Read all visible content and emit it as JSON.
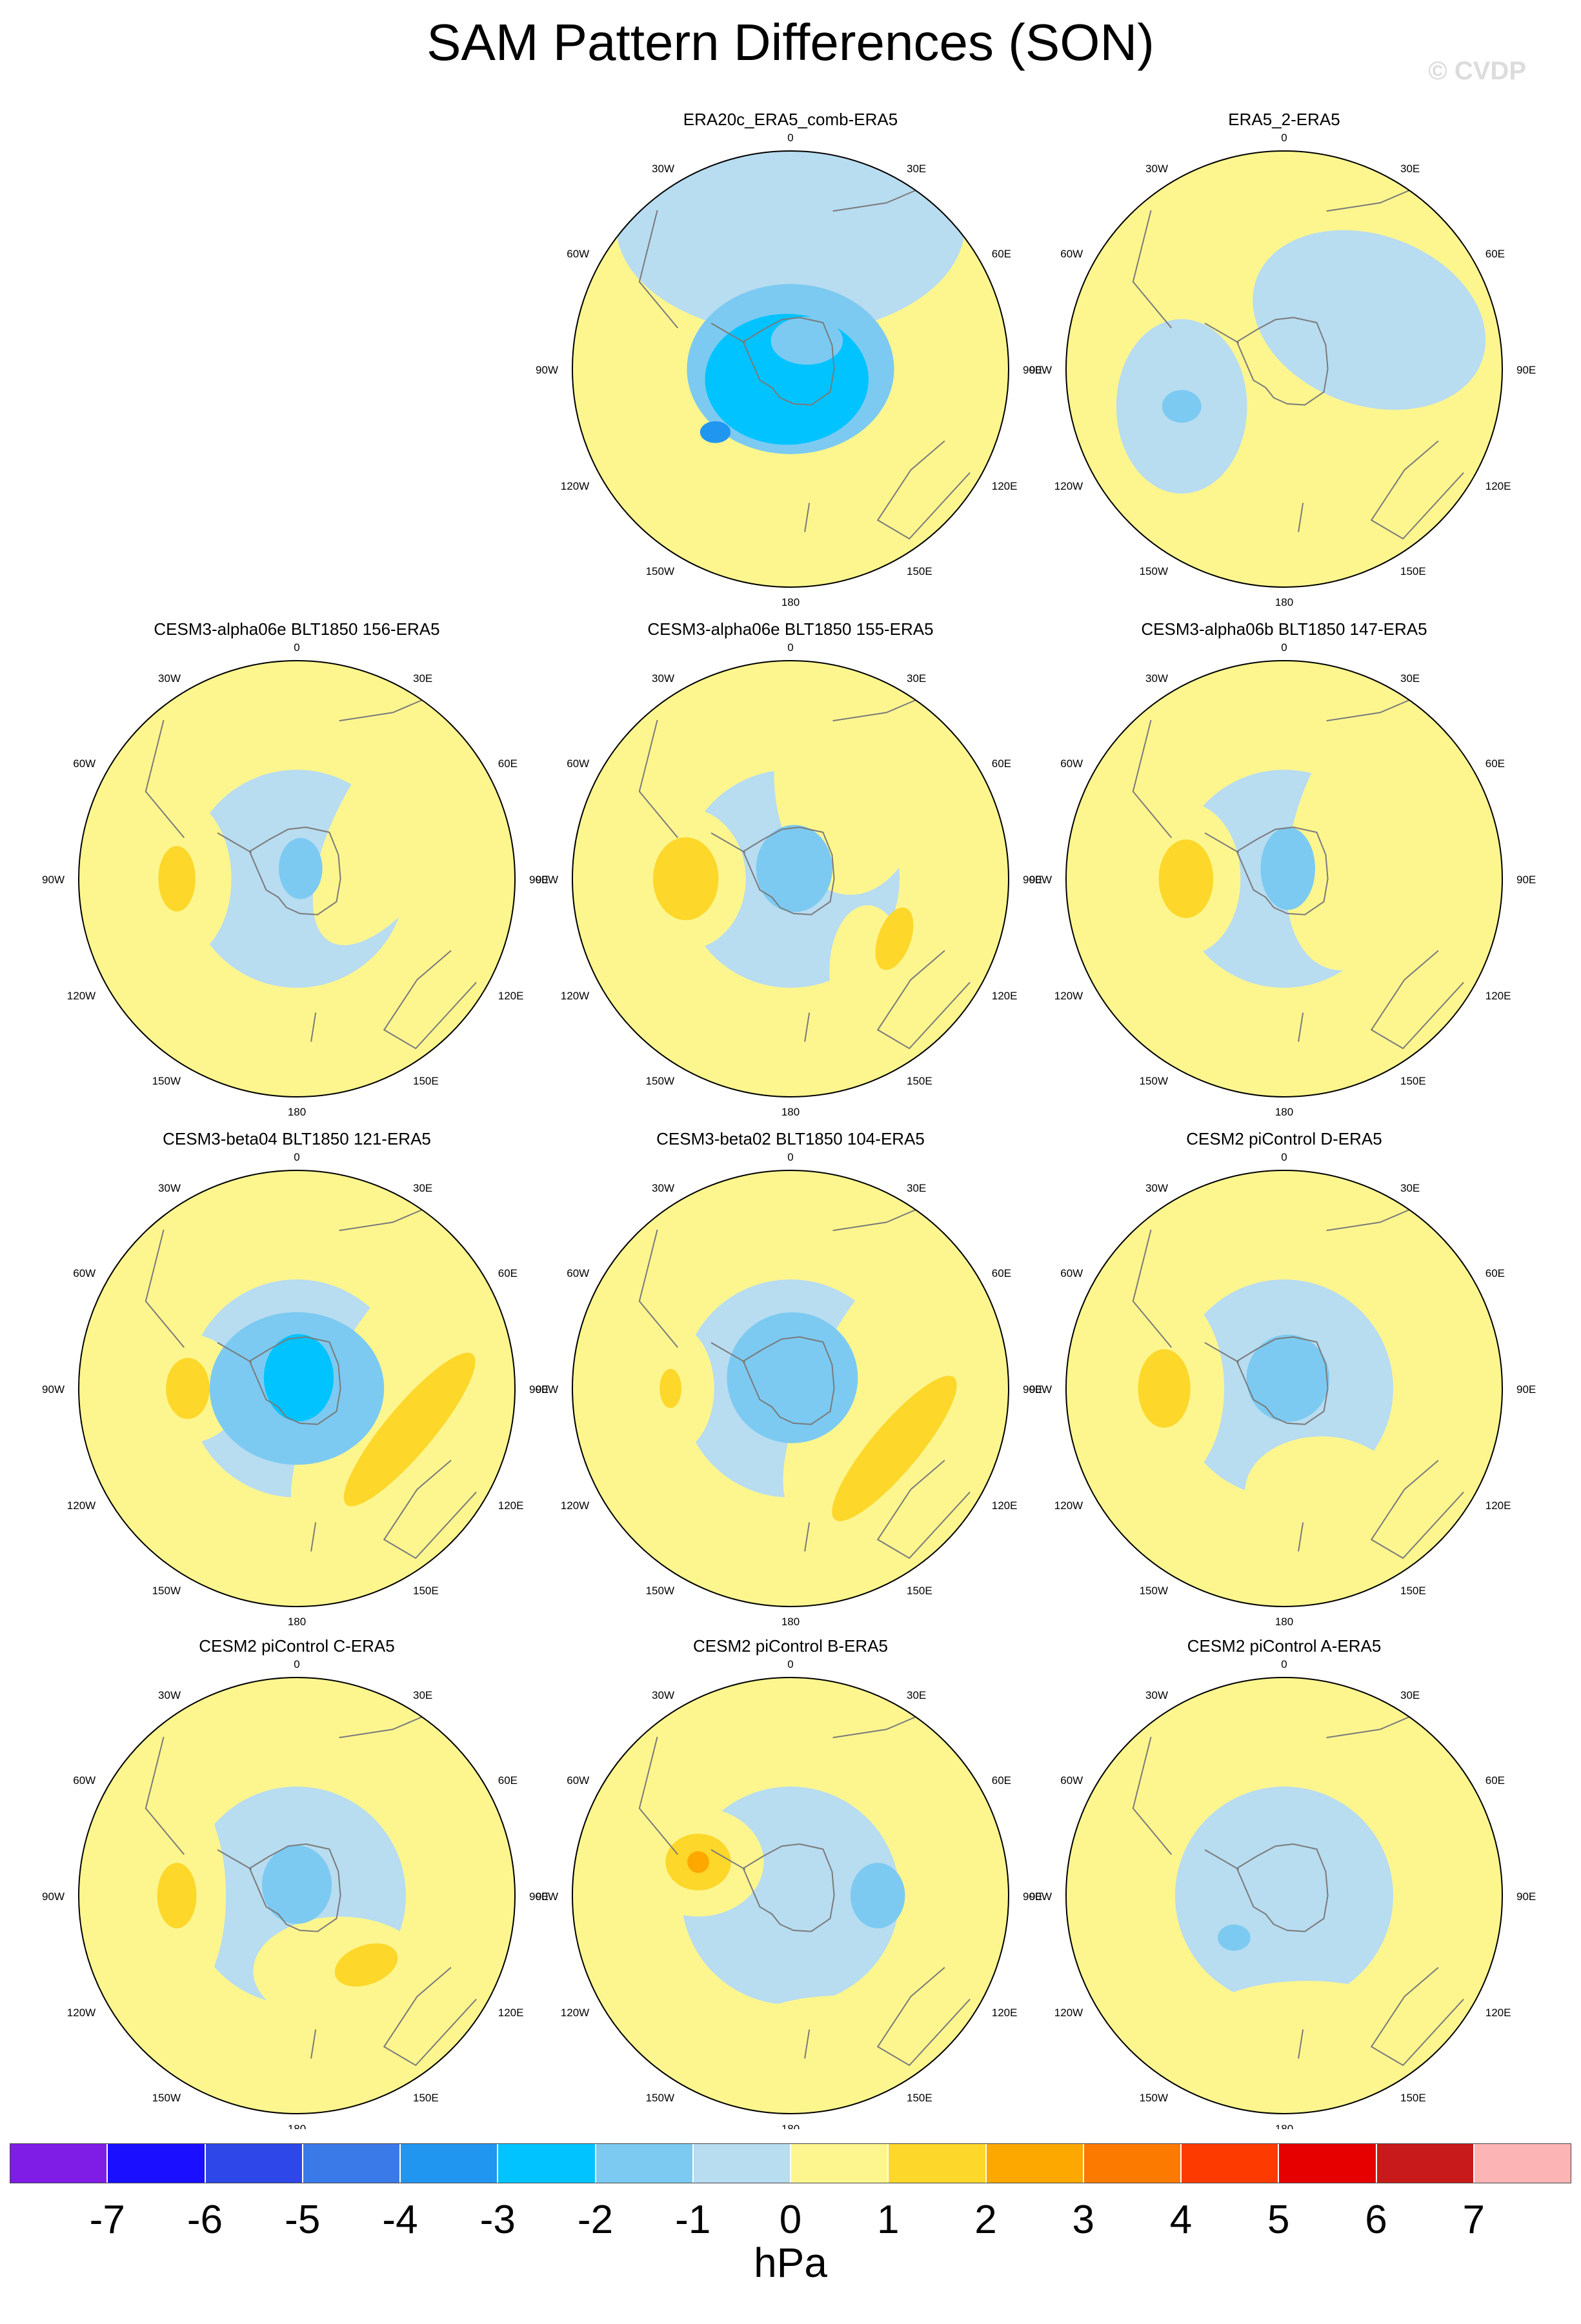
{
  "title": "SAM Pattern Differences (SON)",
  "copyright": "© CVDP",
  "colors": {
    "ocean_neutral_neg": "#b8dcf0",
    "neutral_pos": "#fdf68f",
    "coast": "#7a7a7a",
    "ring": "#000000"
  },
  "lon_labels": [
    "0",
    "30E",
    "60E",
    "90E",
    "120E",
    "150E",
    "180",
    "150W",
    "120W",
    "90W",
    "60W",
    "30W"
  ],
  "panels": [
    {
      "title": "ERA20c_ERA5_comb-ERA5",
      "row": 0,
      "col": 1,
      "blobs": [
        {
          "level": -1,
          "lon": 0,
          "r": 0.66,
          "w": 1.6,
          "h": 1.0,
          "rot": 0
        },
        {
          "level": -2,
          "lon": 0,
          "r": 0.0,
          "w": 0.95,
          "h": 0.78,
          "rot": 0
        },
        {
          "level": -3,
          "lon": 200,
          "r": 0.05,
          "w": 0.75,
          "h": 0.6,
          "rot": 0
        },
        {
          "level": -4,
          "lon": 230,
          "r": 0.45,
          "w": 0.14,
          "h": 0.1,
          "rot": 0
        },
        {
          "level": -2,
          "lon": 30,
          "r": 0.15,
          "w": 0.33,
          "h": 0.22,
          "rot": 0
        }
      ]
    },
    {
      "title": "ERA5_2-ERA5",
      "row": 0,
      "col": 2,
      "blobs": [
        {
          "level": -1,
          "lon": 60,
          "r": 0.45,
          "w": 1.1,
          "h": 0.78,
          "rot": 20
        },
        {
          "level": -1,
          "lon": 250,
          "r": 0.5,
          "w": 0.6,
          "h": 0.8,
          "rot": 0
        },
        {
          "level": -2,
          "lon": 250,
          "r": 0.5,
          "w": 0.18,
          "h": 0.15,
          "rot": 0
        }
      ]
    },
    {
      "title": "CESM3-alpha06e BLT1850 156-ERA5",
      "row": 1,
      "col": 0,
      "blobs": [
        {
          "level": -1,
          "lon": 0,
          "r": 0.0,
          "w": 1.0,
          "h": 1.0,
          "rot": 0
        },
        {
          "level": 1,
          "lon": 270,
          "r": 0.55,
          "w": 0.5,
          "h": 0.75,
          "rot": 0
        },
        {
          "level": 2,
          "lon": 270,
          "r": 0.55,
          "w": 0.17,
          "h": 0.3,
          "rot": 0
        },
        {
          "level": 1,
          "lon": 60,
          "r": 0.55,
          "w": 0.55,
          "h": 1.3,
          "rot": 30
        },
        {
          "level": -2,
          "lon": 20,
          "r": 0.05,
          "w": 0.2,
          "h": 0.28,
          "rot": 0
        }
      ]
    },
    {
      "title": "CESM3-alpha06e BLT1850 155-ERA5",
      "row": 1,
      "col": 1,
      "blobs": [
        {
          "level": -1,
          "lon": 0,
          "r": 0.0,
          "w": 1.0,
          "h": 1.0,
          "rot": 0
        },
        {
          "level": 1,
          "lon": 270,
          "r": 0.48,
          "w": 0.55,
          "h": 0.65,
          "rot": 0
        },
        {
          "level": 2,
          "lon": 270,
          "r": 0.48,
          "w": 0.3,
          "h": 0.38,
          "rot": 0
        },
        {
          "level": 1,
          "lon": 30,
          "r": 0.55,
          "w": 0.7,
          "h": 1.1,
          "rot": 0
        },
        {
          "level": 1,
          "lon": 140,
          "r": 0.55,
          "w": 0.35,
          "h": 0.6,
          "rot": 0
        },
        {
          "level": 2,
          "lon": 120,
          "r": 0.55,
          "w": 0.15,
          "h": 0.3,
          "rot": 20
        },
        {
          "level": -2,
          "lon": 20,
          "r": 0.05,
          "w": 0.35,
          "h": 0.4,
          "rot": 0
        }
      ]
    },
    {
      "title": "CESM3-alpha06b BLT1850 147-ERA5",
      "row": 1,
      "col": 2,
      "blobs": [
        {
          "level": -1,
          "lon": 0,
          "r": 0.0,
          "w": 1.0,
          "h": 1.0,
          "rot": 0
        },
        {
          "level": 1,
          "lon": 270,
          "r": 0.45,
          "w": 0.5,
          "h": 0.7,
          "rot": 0
        },
        {
          "level": 2,
          "lon": 270,
          "r": 0.45,
          "w": 0.25,
          "h": 0.36,
          "rot": 0
        },
        {
          "level": 1,
          "lon": 60,
          "r": 0.5,
          "w": 0.75,
          "h": 1.4,
          "rot": 20
        },
        {
          "level": -2,
          "lon": 20,
          "r": 0.05,
          "w": 0.25,
          "h": 0.38,
          "rot": 0
        }
      ]
    },
    {
      "title": "CESM3-beta04 BLT1850 121-ERA5",
      "row": 2,
      "col": 0,
      "blobs": [
        {
          "level": -1,
          "lon": 0,
          "r": 0.0,
          "w": 1.0,
          "h": 1.0,
          "rot": 0
        },
        {
          "level": 1,
          "lon": 90,
          "r": 0.45,
          "w": 0.6,
          "h": 1.6,
          "rot": 30
        },
        {
          "level": 2,
          "lon": 110,
          "r": 0.55,
          "w": 0.22,
          "h": 0.9,
          "rot": 40
        },
        {
          "level": 1,
          "lon": 270,
          "r": 0.5,
          "w": 0.5,
          "h": 0.5,
          "rot": 0
        },
        {
          "level": 2,
          "lon": 270,
          "r": 0.5,
          "w": 0.2,
          "h": 0.28,
          "rot": 0
        },
        {
          "level": -2,
          "lon": 0,
          "r": 0.0,
          "w": 0.8,
          "h": 0.7,
          "rot": 0
        },
        {
          "level": -3,
          "lon": 10,
          "r": 0.05,
          "w": 0.32,
          "h": 0.4,
          "rot": 0
        }
      ]
    },
    {
      "title": "CESM3-beta02 BLT1850 104-ERA5",
      "row": 2,
      "col": 1,
      "blobs": [
        {
          "level": -1,
          "lon": 0,
          "r": 0.0,
          "w": 1.0,
          "h": 1.0,
          "rot": 0
        },
        {
          "level": 1,
          "lon": 80,
          "r": 0.45,
          "w": 0.6,
          "h": 1.6,
          "rot": 30
        },
        {
          "level": 2,
          "lon": 120,
          "r": 0.55,
          "w": 0.22,
          "h": 0.85,
          "rot": 40
        },
        {
          "level": 1,
          "lon": 270,
          "r": 0.55,
          "w": 0.4,
          "h": 0.6,
          "rot": 0
        },
        {
          "level": 2,
          "lon": 270,
          "r": 0.55,
          "w": 0.1,
          "h": 0.18,
          "rot": 0
        },
        {
          "level": -2,
          "lon": 10,
          "r": 0.05,
          "w": 0.6,
          "h": 0.6,
          "rot": 0
        }
      ]
    },
    {
      "title": "CESM2 piControl D-ERA5",
      "row": 2,
      "col": 2,
      "blobs": [
        {
          "level": -1,
          "lon": 0,
          "r": 0.0,
          "w": 1.0,
          "h": 1.0,
          "rot": 0
        },
        {
          "level": 1,
          "lon": 270,
          "r": 0.55,
          "w": 0.55,
          "h": 0.9,
          "rot": 0
        },
        {
          "level": 2,
          "lon": 270,
          "r": 0.55,
          "w": 0.24,
          "h": 0.36,
          "rot": 0
        },
        {
          "level": 1,
          "lon": 160,
          "r": 0.5,
          "w": 0.7,
          "h": 0.5,
          "rot": 0
        },
        {
          "level": -2,
          "lon": 20,
          "r": 0.05,
          "w": 0.38,
          "h": 0.4,
          "rot": 0
        }
      ]
    },
    {
      "title": "CESM2 piControl C-ERA5",
      "row": 3,
      "col": 0,
      "blobs": [
        {
          "level": -1,
          "lon": 0,
          "r": 0.0,
          "w": 1.0,
          "h": 1.0,
          "rot": 0
        },
        {
          "level": 1,
          "lon": 270,
          "r": 0.55,
          "w": 0.45,
          "h": 1.0,
          "rot": 0
        },
        {
          "level": 2,
          "lon": 270,
          "r": 0.55,
          "w": 0.18,
          "h": 0.3,
          "rot": 0
        },
        {
          "level": 1,
          "lon": 150,
          "r": 0.4,
          "w": 0.8,
          "h": 0.5,
          "rot": 0
        },
        {
          "level": 2,
          "lon": 135,
          "r": 0.45,
          "w": 0.3,
          "h": 0.18,
          "rot": -20
        },
        {
          "level": -2,
          "lon": 0,
          "r": 0.05,
          "w": 0.32,
          "h": 0.36,
          "rot": 0
        }
      ]
    },
    {
      "title": "CESM2 piControl B-ERA5",
      "row": 3,
      "col": 1,
      "blobs": [
        {
          "level": -1,
          "lon": 0,
          "r": 0.0,
          "w": 1.0,
          "h": 1.0,
          "rot": 0
        },
        {
          "level": 1,
          "lon": 290,
          "r": 0.45,
          "w": 0.6,
          "h": 0.5,
          "rot": 0
        },
        {
          "level": 2,
          "lon": 290,
          "r": 0.45,
          "w": 0.3,
          "h": 0.26,
          "rot": 0
        },
        {
          "level": 3,
          "lon": 290,
          "r": 0.45,
          "w": 0.1,
          "h": 0.1,
          "rot": 0
        },
        {
          "level": 1,
          "lon": 160,
          "r": 0.7,
          "w": 1.0,
          "h": 0.4,
          "rot": 0
        },
        {
          "level": -2,
          "lon": 90,
          "r": 0.4,
          "w": 0.25,
          "h": 0.3,
          "rot": 0
        }
      ]
    },
    {
      "title": "CESM2 piControl A-ERA5",
      "row": 3,
      "col": 2,
      "blobs": [
        {
          "level": -1,
          "lon": 0,
          "r": 0.0,
          "w": 1.0,
          "h": 1.0,
          "rot": 0
        },
        {
          "level": 1,
          "lon": 270,
          "r": 0.75,
          "w": 0.5,
          "h": 1.1,
          "rot": 0
        },
        {
          "level": 1,
          "lon": 170,
          "r": 0.6,
          "w": 1.0,
          "h": 0.4,
          "rot": 0
        },
        {
          "level": -2,
          "lon": 230,
          "r": 0.3,
          "w": 0.15,
          "h": 0.12,
          "rot": 0
        }
      ]
    }
  ],
  "colorbar": {
    "levels": [
      "-7",
      "-6",
      "-5",
      "-4",
      "-3",
      "-2",
      "-1",
      "0",
      "1",
      "2",
      "3",
      "4",
      "5",
      "6",
      "7"
    ],
    "colors": [
      "#7f1ce6",
      "#1a0fff",
      "#2d47e8",
      "#3a7ae8",
      "#2196f0",
      "#00c3ff",
      "#7ccaf1",
      "#b8dcf0",
      "#fdf68f",
      "#fdd72a",
      "#fda800",
      "#fd7a00",
      "#fd3a00",
      "#e60000",
      "#c81a1a",
      "#fcb4b4"
    ],
    "unit": "hPa"
  }
}
